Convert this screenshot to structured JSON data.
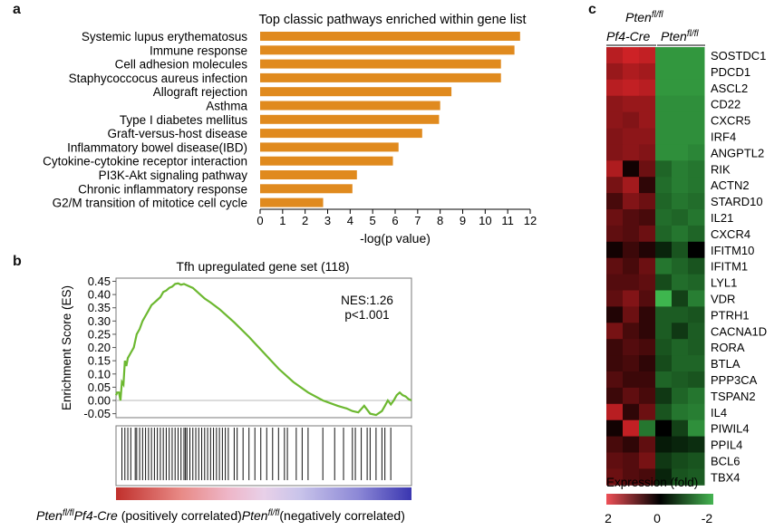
{
  "panels": {
    "a": "a",
    "b": "b",
    "c": "c"
  },
  "chart_data": [
    {
      "type": "bar",
      "orientation": "horizontal",
      "title": "Top classic pathways enriched within gene list",
      "xlabel": "-log(p value)",
      "xlim": [
        0,
        12
      ],
      "xticks": [
        "0",
        "1",
        "2",
        "3",
        "4",
        "5",
        "6",
        "7",
        "8",
        "9",
        "10",
        "11",
        "12"
      ],
      "bar_color": "#e08a1e",
      "categories": [
        "Systemic lupus erythematosus",
        "Immune response",
        "Cell adhesion molecules",
        "Staphycoccocus aureus infection",
        "Allograft rejection",
        "Asthma",
        "Type I diabetes mellitus",
        "Graft-versus-host disease",
        "Inflammatory bowel disease(IBD)",
        "Cytokine-cytokine receptor interaction",
        "PI3K-Akt signaling pathway",
        "Chronic inflammatory response",
        "G2/M transition of mitotice cell cycle"
      ],
      "values": [
        11.55,
        11.3,
        10.7,
        10.7,
        8.5,
        8.0,
        7.95,
        7.2,
        6.15,
        5.9,
        4.3,
        4.1,
        2.8
      ]
    },
    {
      "type": "line",
      "title": "Tfh upregulated gene set (118)",
      "ylabel": "Enrichment Score (ES)",
      "ylim": [
        -0.05,
        0.45
      ],
      "yticks": [
        "0.45",
        "0.40",
        "0.35",
        "0.30",
        "0.25",
        "0.20",
        "0.15",
        "0.10",
        "0.05",
        "0.00",
        "-0.05"
      ],
      "line_color": "#6cb830",
      "annotation_nes": "NES:1.26",
      "annotation_p": "p<1.001",
      "x": [
        0,
        0.4,
        1,
        1.5,
        2,
        2.5,
        3,
        3.5,
        4,
        5,
        6,
        7,
        8,
        9,
        10,
        11,
        12,
        13,
        14,
        15,
        16,
        17,
        18,
        19,
        20,
        21,
        22,
        23,
        24,
        25,
        26,
        27,
        28,
        29,
        30,
        32,
        35,
        40,
        45,
        50,
        55,
        60,
        65,
        70,
        75,
        78,
        80,
        82,
        84,
        86,
        88,
        90,
        91,
        92,
        93,
        94,
        95,
        96,
        97,
        98,
        99,
        100
      ],
      "values": [
        0.02,
        0.03,
        0.03,
        0.0,
        0.07,
        0.06,
        0.15,
        0.13,
        0.16,
        0.18,
        0.2,
        0.25,
        0.27,
        0.3,
        0.32,
        0.34,
        0.36,
        0.37,
        0.38,
        0.39,
        0.41,
        0.415,
        0.425,
        0.43,
        0.44,
        0.442,
        0.437,
        0.44,
        0.435,
        0.43,
        0.425,
        0.415,
        0.405,
        0.395,
        0.385,
        0.37,
        0.345,
        0.295,
        0.24,
        0.18,
        0.12,
        0.07,
        0.03,
        0.0,
        -0.02,
        -0.03,
        -0.04,
        -0.045,
        -0.02,
        -0.05,
        -0.055,
        -0.04,
        -0.02,
        0.0,
        -0.015,
        0.0,
        0.02,
        0.03,
        0.02,
        0.015,
        0.005,
        0.0
      ],
      "hit_positions": [
        2,
        3,
        4,
        5,
        6.5,
        7,
        8,
        9,
        10,
        11,
        12,
        13,
        14,
        15,
        16,
        17,
        18,
        19,
        20,
        21,
        22,
        23,
        23.5,
        24,
        25,
        26,
        27,
        28,
        29,
        30,
        31,
        32,
        33,
        34,
        35,
        36,
        37,
        38,
        40,
        41,
        43,
        45,
        47,
        49,
        51,
        53,
        55,
        57,
        58,
        61,
        63,
        65,
        70,
        74,
        77,
        80,
        81,
        83,
        85,
        86,
        88,
        90,
        91,
        93
      ],
      "x_left_label_gene": "Pten",
      "x_left_label_sup": "fl/fl",
      "x_left_label_rest": "Pf4-Cre",
      "x_left_label_note": "(positively correlated)",
      "x_right_label_gene": "Pten",
      "x_right_label_sup": "fl/fl",
      "x_right_label_note": "(negatively correlated)"
    },
    {
      "type": "heatmap",
      "col_groups": [
        {
          "gene": "Pten",
          "sup": "fl/fl",
          "line2": "Pf4-Cre"
        },
        {
          "gene": "Pten",
          "sup": "fl/fl",
          "line2": ""
        }
      ],
      "rows": [
        "SOSTDC1",
        "PDCD1",
        "ASCL2",
        "CD22",
        "CXCR5",
        "IRF4",
        "ANGPTL2",
        "RIK",
        "ACTN2",
        "STARD10",
        "IL21",
        "CXCR4",
        "IFITM10",
        "IFITM1",
        "LYL1",
        "VDR",
        "PTRH1",
        "CACNA1D",
        "RORA",
        "BTLA",
        "PPP3CA",
        "TSPAN2",
        "IL4",
        "PIWIL4",
        "PPIL4",
        "BCL6",
        "TBX4"
      ],
      "values": [
        [
          1.5,
          1.7,
          1.6,
          -1.6,
          -1.6,
          -1.6
        ],
        [
          1.2,
          1.4,
          1.3,
          -1.6,
          -1.6,
          -1.6
        ],
        [
          1.5,
          1.6,
          1.5,
          -1.6,
          -1.6,
          -1.6
        ],
        [
          1.1,
          1.2,
          1.2,
          -1.5,
          -1.5,
          -1.5
        ],
        [
          1.1,
          1.0,
          1.2,
          -1.5,
          -1.5,
          -1.5
        ],
        [
          1.0,
          1.1,
          1.1,
          -1.5,
          -1.5,
          -1.5
        ],
        [
          1.0,
          1.1,
          1.0,
          -1.5,
          -1.5,
          -1.4
        ],
        [
          1.4,
          0.1,
          0.8,
          -1.0,
          -1.3,
          -1.2
        ],
        [
          0.9,
          1.3,
          0.3,
          -1.1,
          -1.3,
          -1.2
        ],
        [
          0.5,
          1.0,
          0.8,
          -1.0,
          -1.2,
          -1.1
        ],
        [
          0.8,
          0.6,
          0.5,
          -1.1,
          -1.0,
          -1.2
        ],
        [
          0.7,
          0.6,
          0.8,
          -1.0,
          -1.2,
          -1.0
        ],
        [
          0.1,
          0.4,
          0.2,
          -0.3,
          -0.8,
          0.0
        ],
        [
          0.7,
          0.5,
          0.8,
          -1.2,
          -1.0,
          -0.8
        ],
        [
          0.6,
          0.6,
          0.7,
          -0.7,
          -1.1,
          -1.0
        ],
        [
          0.7,
          1.0,
          0.6,
          -2.0,
          -0.6,
          -1.3
        ],
        [
          0.2,
          0.8,
          0.3,
          -0.9,
          -0.9,
          -0.8
        ],
        [
          0.9,
          0.5,
          0.3,
          -0.9,
          -0.5,
          -0.9
        ],
        [
          0.4,
          0.6,
          0.5,
          -0.8,
          -1.0,
          -0.9
        ],
        [
          0.4,
          0.5,
          0.3,
          -0.7,
          -1.0,
          -1.0
        ],
        [
          0.6,
          0.4,
          0.4,
          -1.0,
          -0.9,
          -0.8
        ],
        [
          0.4,
          0.7,
          0.5,
          -0.5,
          -1.0,
          -1.2
        ],
        [
          1.5,
          0.3,
          0.8,
          -0.8,
          -1.2,
          -1.3
        ],
        [
          0.1,
          1.6,
          -1.2,
          0.0,
          -0.6,
          -1.5
        ],
        [
          0.5,
          0.3,
          0.7,
          -0.2,
          -0.3,
          -0.4
        ],
        [
          0.7,
          0.6,
          0.9,
          -0.5,
          -0.7,
          -0.8
        ],
        [
          0.8,
          0.6,
          0.5,
          -0.3,
          -0.8,
          -0.9
        ]
      ],
      "colorbar_label": "Expression  (fold)",
      "colorbar_ticks": [
        "2",
        "0",
        "-2"
      ],
      "colormap": [
        "#e8404a",
        "#000000",
        "#3fb24d"
      ]
    }
  ]
}
